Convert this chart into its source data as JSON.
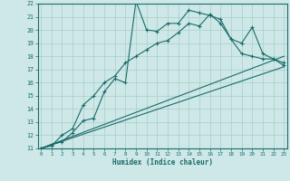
{
  "xlabel": "Humidex (Indice chaleur)",
  "xlim": [
    0,
    23
  ],
  "ylim": [
    11,
    22
  ],
  "yticks": [
    11,
    12,
    13,
    14,
    15,
    16,
    17,
    18,
    19,
    20,
    21,
    22
  ],
  "xticks": [
    0,
    1,
    2,
    3,
    4,
    5,
    6,
    7,
    8,
    9,
    10,
    11,
    12,
    13,
    14,
    15,
    16,
    17,
    18,
    19,
    20,
    21,
    22,
    23
  ],
  "bg_color": "#cde8e6",
  "grid_color": "#a8ceca",
  "line_color": "#1a6b6b",
  "lines": [
    {
      "x": [
        0,
        1,
        2,
        3,
        4,
        5,
        6,
        7,
        8,
        9,
        10,
        11,
        12,
        13,
        14,
        15,
        16,
        17,
        18,
        19,
        20,
        21,
        22,
        23
      ],
      "y": [
        11,
        11.3,
        11.5,
        12.2,
        13.1,
        13.3,
        15.3,
        16.3,
        16.0,
        22.2,
        20.0,
        19.9,
        20.5,
        20.5,
        21.5,
        21.3,
        21.1,
        20.8,
        19.3,
        19.0,
        20.2,
        18.2,
        17.8,
        17.5
      ],
      "marker": true
    },
    {
      "x": [
        0,
        1,
        2,
        3,
        4,
        5,
        6,
        7,
        8,
        9,
        10,
        11,
        12,
        13,
        14,
        15,
        16,
        17,
        18,
        19,
        20,
        21,
        22,
        23
      ],
      "y": [
        11,
        11.2,
        12.0,
        12.5,
        14.3,
        15.0,
        16.0,
        16.5,
        17.5,
        18.0,
        18.5,
        19.0,
        19.2,
        19.8,
        20.5,
        20.3,
        21.2,
        20.5,
        19.3,
        18.2,
        18.0,
        17.8,
        17.8,
        17.3
      ],
      "marker": true
    },
    {
      "x": [
        0,
        23
      ],
      "y": [
        11,
        18.0
      ],
      "marker": false
    },
    {
      "x": [
        0,
        23
      ],
      "y": [
        11,
        17.2
      ],
      "marker": false
    }
  ]
}
